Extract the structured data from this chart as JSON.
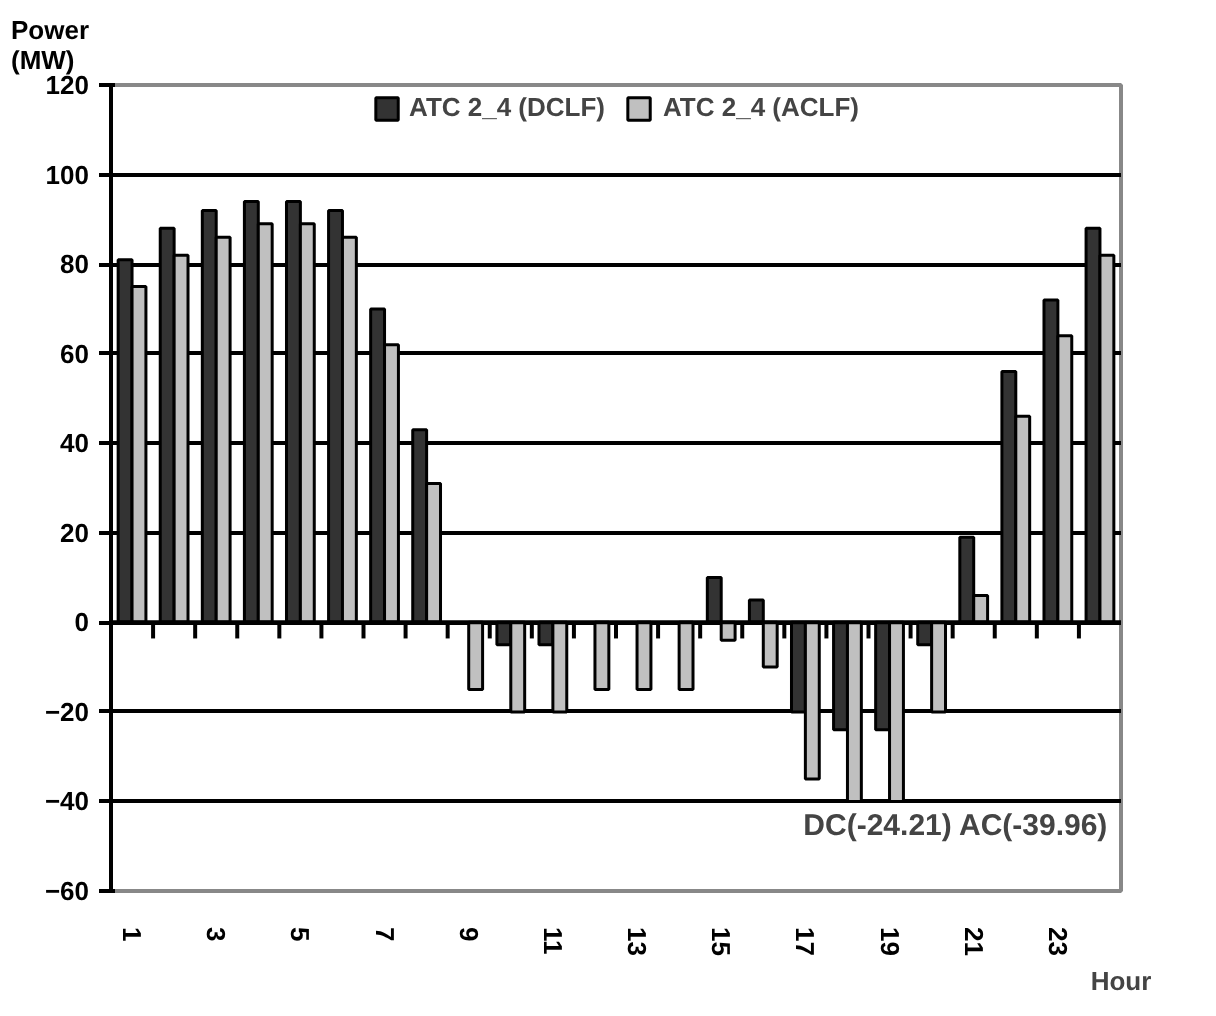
{
  "chart_data": {
    "type": "bar",
    "ylabel": "Power\n(MW)",
    "xlabel": "Hour",
    "categories": [
      "1",
      null,
      "3",
      null,
      "5",
      null,
      "7",
      null,
      "9",
      null,
      "11",
      null,
      "13",
      null,
      "15",
      null,
      "17",
      null,
      "19",
      null,
      "21",
      null,
      "23",
      null
    ],
    "series": [
      {
        "name": "ATC 2_4 (DCLF)",
        "color": "#333333",
        "values": [
          81,
          88,
          92,
          94,
          94,
          92,
          70,
          43,
          null,
          -5,
          -5,
          null,
          null,
          null,
          10,
          5,
          -20,
          -24,
          -24,
          -5,
          19,
          56,
          72,
          88
        ]
      },
      {
        "name": "ATC 2_4 (ACLF)",
        "color": "#c0c0c0",
        "values": [
          75,
          82,
          86,
          89,
          89,
          86,
          62,
          31,
          -15,
          -20,
          -20,
          -15,
          -15,
          -15,
          -4,
          -10,
          -35,
          -40,
          -40,
          -20,
          6,
          46,
          64,
          82
        ]
      }
    ],
    "ylim": [
      -60,
      120
    ],
    "yticks": [
      -60,
      -40,
      -20,
      0,
      20,
      40,
      60,
      80,
      100,
      120
    ],
    "grid": "y",
    "legend": "top",
    "annotations": [
      "DC(-24.21)  AC(-39.96)"
    ]
  }
}
